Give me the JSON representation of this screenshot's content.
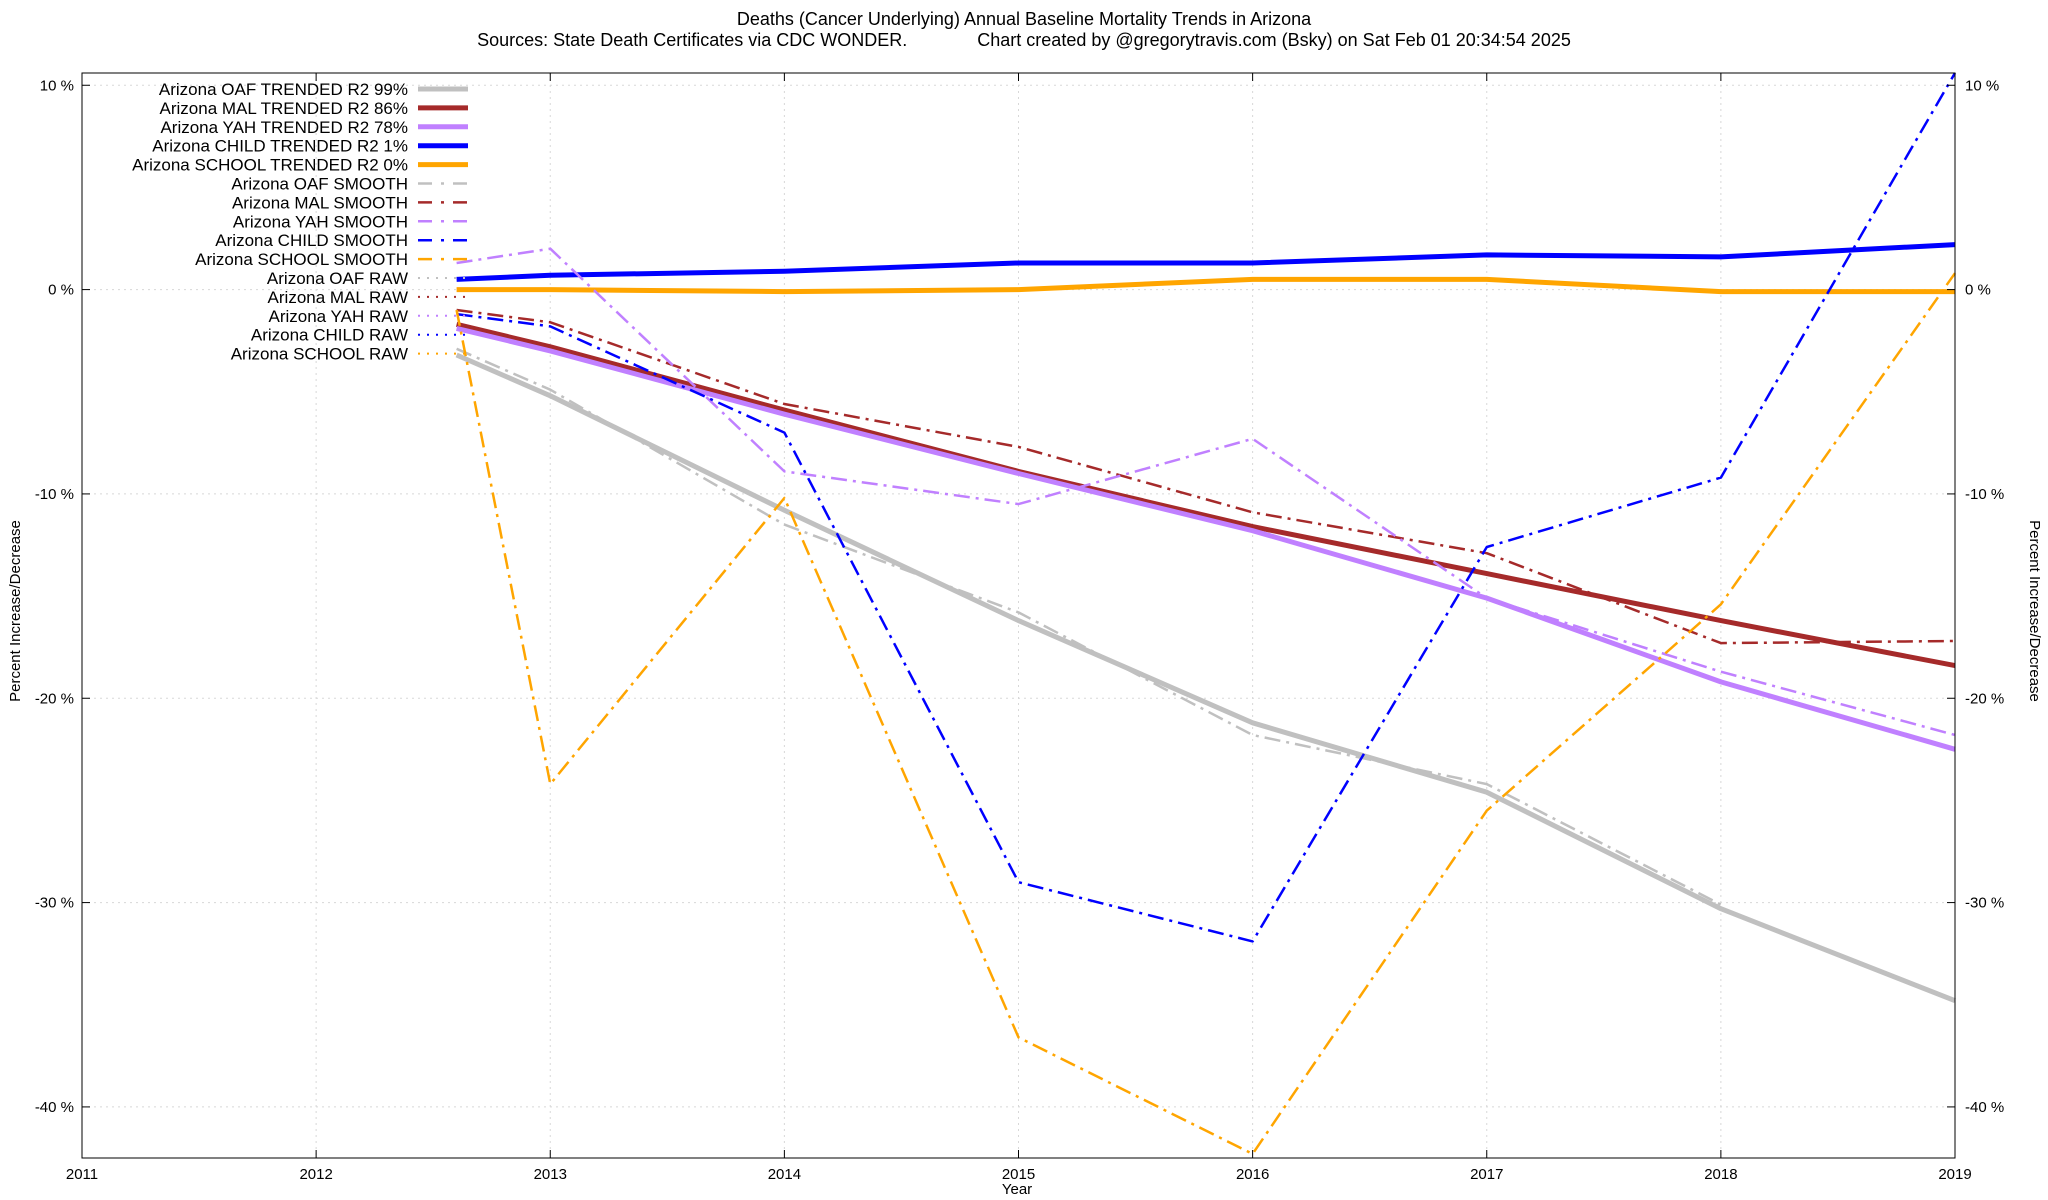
{
  "chart_data": {
    "type": "line",
    "title": "Deaths (Cancer Underlying)  Annual Baseline Mortality Trends in Arizona",
    "subtitle": "Sources: State Death Certificates via CDC WONDER.              Chart created by @gregorytravis.com (Bsky) on Sat Feb 01 20:34:54 2025",
    "xlabel": "Year",
    "ylabel": "Percent Increase/Decrease",
    "y2label": "Percent Increase/Decrease",
    "xlim": [
      2011,
      2019
    ],
    "ylim": [
      -42.5,
      10.6
    ],
    "x_ticks": [
      "2011",
      "2012",
      "2013",
      "2014",
      "2015",
      "2016",
      "2017",
      "2018",
      "2019"
    ],
    "y_ticks": [
      {
        "value": 10,
        "label": "10 %"
      },
      {
        "value": 0,
        "label": "0 %"
      },
      {
        "value": -10,
        "label": "-10 %"
      },
      {
        "value": -20,
        "label": "-20 %"
      },
      {
        "value": -30,
        "label": "-30 %"
      },
      {
        "value": -40,
        "label": "-40 %"
      }
    ],
    "grid": true,
    "legend_position": "top-left",
    "series": [
      {
        "name": "Arizona OAF TRENDED R2  99%",
        "style": "trend",
        "color": "#c0c0c0",
        "x": [
          2012.6,
          2013,
          2014,
          2015,
          2016,
          2017,
          2018,
          2019
        ],
        "y": [
          -3.2,
          -5.2,
          -10.8,
          -16.2,
          -21.2,
          -24.6,
          -30.3,
          -34.8
        ]
      },
      {
        "name": "Arizona MAL TRENDED R2  86%",
        "style": "trend",
        "color": "#a52a2a",
        "x": [
          2012.6,
          2013,
          2014,
          2015,
          2016,
          2017,
          2018,
          2019
        ],
        "y": [
          -1.7,
          -2.8,
          -5.9,
          -8.9,
          -11.6,
          -13.9,
          -16.2,
          -18.4
        ]
      },
      {
        "name": "Arizona YAH TRENDED R2  78%",
        "style": "trend",
        "color": "#c080ff",
        "x": [
          2012.6,
          2013,
          2014,
          2015,
          2016,
          2017,
          2018,
          2019
        ],
        "y": [
          -1.9,
          -3.0,
          -6.1,
          -9.0,
          -11.8,
          -15.1,
          -19.2,
          -22.5
        ]
      },
      {
        "name": "Arizona CHILD TRENDED R2   1%",
        "style": "trend",
        "color": "#0000ff",
        "x": [
          2012.6,
          2013,
          2014,
          2015,
          2016,
          2017,
          2018,
          2019
        ],
        "y": [
          0.5,
          0.7,
          0.9,
          1.3,
          1.3,
          1.7,
          1.6,
          2.2
        ]
      },
      {
        "name": "Arizona SCHOOL TRENDED R2   0%",
        "style": "trend",
        "color": "#ffa500",
        "x": [
          2012.6,
          2013,
          2014,
          2015,
          2016,
          2017,
          2018,
          2019
        ],
        "y": [
          0.0,
          0.0,
          -0.1,
          0.0,
          0.5,
          0.5,
          -0.1,
          -0.1
        ]
      },
      {
        "name": "Arizona OAF SMOOTH",
        "style": "smooth",
        "color": "#c0c0c0",
        "x": [
          2012.6,
          2013,
          2014,
          2015,
          2016,
          2017,
          2018,
          2019
        ],
        "y": [
          -2.9,
          -4.9,
          -11.5,
          -15.8,
          -21.8,
          -24.2,
          -30.1,
          null
        ]
      },
      {
        "name": "Arizona MAL SMOOTH",
        "style": "smooth",
        "color": "#a52a2a",
        "x": [
          2012.6,
          2013,
          2014,
          2015,
          2016,
          2017,
          2018,
          2019
        ],
        "y": [
          -1.0,
          -1.6,
          -5.6,
          -7.7,
          -10.9,
          -12.9,
          -17.3,
          -17.2
        ]
      },
      {
        "name": "Arizona YAH SMOOTH",
        "style": "smooth",
        "color": "#c080ff",
        "x": [
          2012.6,
          2013,
          2014,
          2015,
          2016,
          2017,
          2018,
          2019
        ],
        "y": [
          1.3,
          2.0,
          -8.9,
          -10.5,
          -7.3,
          -15.1,
          -18.7,
          -21.8
        ]
      },
      {
        "name": "Arizona CHILD SMOOTH",
        "style": "smooth",
        "color": "#0000ff",
        "x": [
          2012.6,
          2013,
          2014,
          2015,
          2016,
          2017,
          2018,
          2019
        ],
        "y": [
          -1.2,
          -1.8,
          -7.0,
          -29.0,
          -31.9,
          -12.6,
          -9.2,
          10.6
        ]
      },
      {
        "name": "Arizona SCHOOL SMOOTH",
        "style": "smooth",
        "color": "#ffa500",
        "x": [
          2012.6,
          2013,
          2014,
          2015,
          2016,
          2017,
          2018,
          2019
        ],
        "y": [
          -1.0,
          -24.2,
          -10.2,
          -36.6,
          -42.3,
          -25.5,
          -15.4,
          0.8
        ]
      },
      {
        "name": "Arizona OAF RAW",
        "style": "raw",
        "color": "#c0c0c0",
        "x": [],
        "y": []
      },
      {
        "name": "Arizona MAL RAW",
        "style": "raw",
        "color": "#a52a2a",
        "x": [],
        "y": []
      },
      {
        "name": "Arizona YAH RAW",
        "style": "raw",
        "color": "#c080ff",
        "x": [],
        "y": []
      },
      {
        "name": "Arizona CHILD RAW",
        "style": "raw",
        "color": "#0000ff",
        "x": [],
        "y": []
      },
      {
        "name": "Arizona SCHOOL RAW",
        "style": "raw",
        "color": "#ffa500",
        "x": [],
        "y": []
      }
    ]
  }
}
